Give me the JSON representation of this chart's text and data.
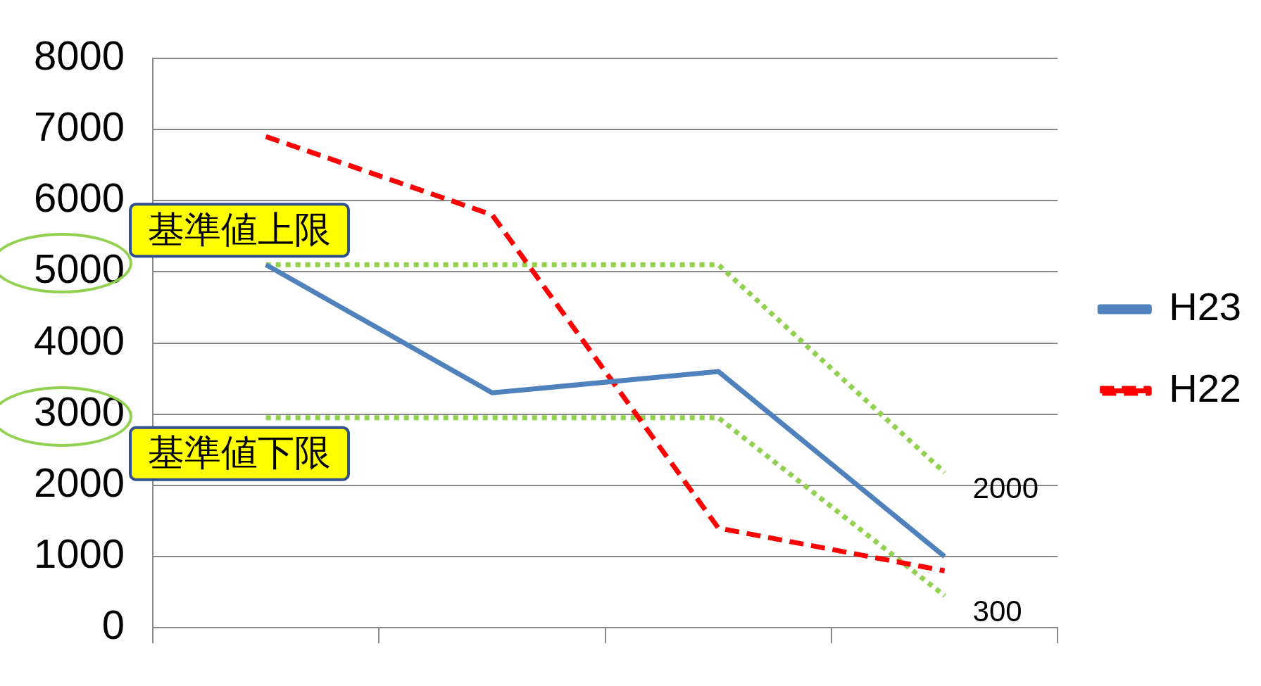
{
  "chart_data": {
    "type": "line",
    "categories": [
      null,
      null,
      null,
      null
    ],
    "ylim": [
      0,
      8000
    ],
    "yticks": [
      0,
      1000,
      2000,
      3000,
      4000,
      5000,
      6000,
      7000,
      8000
    ],
    "tick_labels": "y",
    "grid": "y",
    "legend": "right",
    "marker": "none",
    "series": [
      {
        "name": "H23",
        "color": "#4f81bd",
        "line_style": "solid",
        "values": [
          5100,
          3300,
          3600,
          1000
        ]
      },
      {
        "name": "H22",
        "color": "#ff0000",
        "line_style": "dashed",
        "values": [
          6900,
          5800,
          1400,
          800
        ]
      },
      {
        "name": "基準値上限",
        "color": "#92d050",
        "line_style": "dotted",
        "values": [
          5100,
          5100,
          5100,
          2180
        ]
      },
      {
        "name": "基準値下限",
        "color": "#92d050",
        "line_style": "dotted",
        "values": [
          2950,
          2950,
          2950,
          450
        ]
      }
    ],
    "annotations": [
      "2000",
      "300"
    ]
  }
}
